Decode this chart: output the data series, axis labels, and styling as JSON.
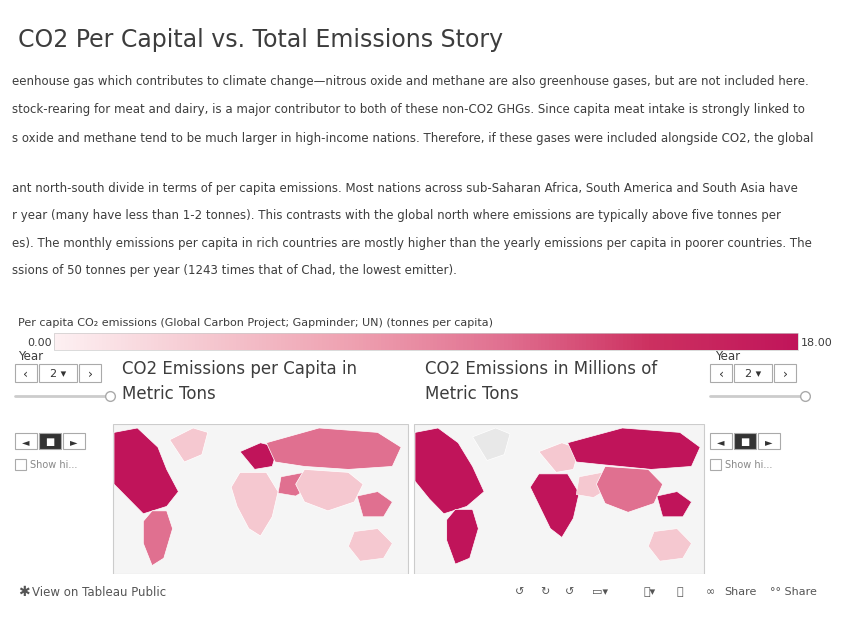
{
  "title": "CO2 Per Capital vs. Total Emissions Story",
  "title_fontsize": 17,
  "title_color": "#3d3d3d",
  "background_color": "#ffffff",
  "text_block_bg": "#d8d8d8",
  "text_block1_lines": [
    "eenhouse gas which contributes to climate change—nitrous oxide and methane are also greenhouse gases, but are not included here.",
    "stock-rearing for meat and dairy, is a major contributor to both of these non-CO2 GHGs. Since capita meat intake is strongly linked to",
    "s oxide and methane tend to be much larger in high-income nations. Therefore, if these gases were included alongside CO2, the global"
  ],
  "text_block2_lines": [
    "ant north-south divide in terms of per capita emissions. Most nations across sub-Saharan Africa, South America and South Asia have",
    "r year (many have less than 1-2 tonnes). This contrasts with the global north where emissions are typically above five tonnes per",
    "es). The monthly emissions per capita in rich countries are mostly higher than the yearly emissions per capita in poorer countries. The",
    "ssions of 50 tonnes per year (1243 times that of Chad, the lowest emitter)."
  ],
  "colorbar_label": "Per capita CO₂ emissions (Global Carbon Project; Gapminder; UN) (tonnes per capita)",
  "colorbar_min": "0.00",
  "colorbar_max": "18.00",
  "colorbar_colors": [
    "#fdf0f2",
    "#f5c8d0",
    "#eea0b0",
    "#e07090",
    "#cc3060",
    "#c0145a"
  ],
  "map_title_left": "CO2 Emissions per Capita in\nMetric Tons",
  "map_title_right": "CO2 Emissions in Millions of\nMetric Tons",
  "year_label": "Year",
  "year_value": "2",
  "bottom_bar_bg": "#f0f0f0",
  "bottom_bar_text": "View on Tableau Public",
  "map_bg": "#f5f5f5",
  "map_border_color": "#cccccc",
  "map_pink_dark": "#c0145a",
  "map_pink_mid": "#e07090",
  "map_pink_light": "#f5c8d0",
  "map_grey": "#c8c0c4",
  "map_white": "#f8f8f8",
  "text_fontsize": 8.5,
  "body_text_color": "#3d3d3d",
  "grey_text": "#888888"
}
